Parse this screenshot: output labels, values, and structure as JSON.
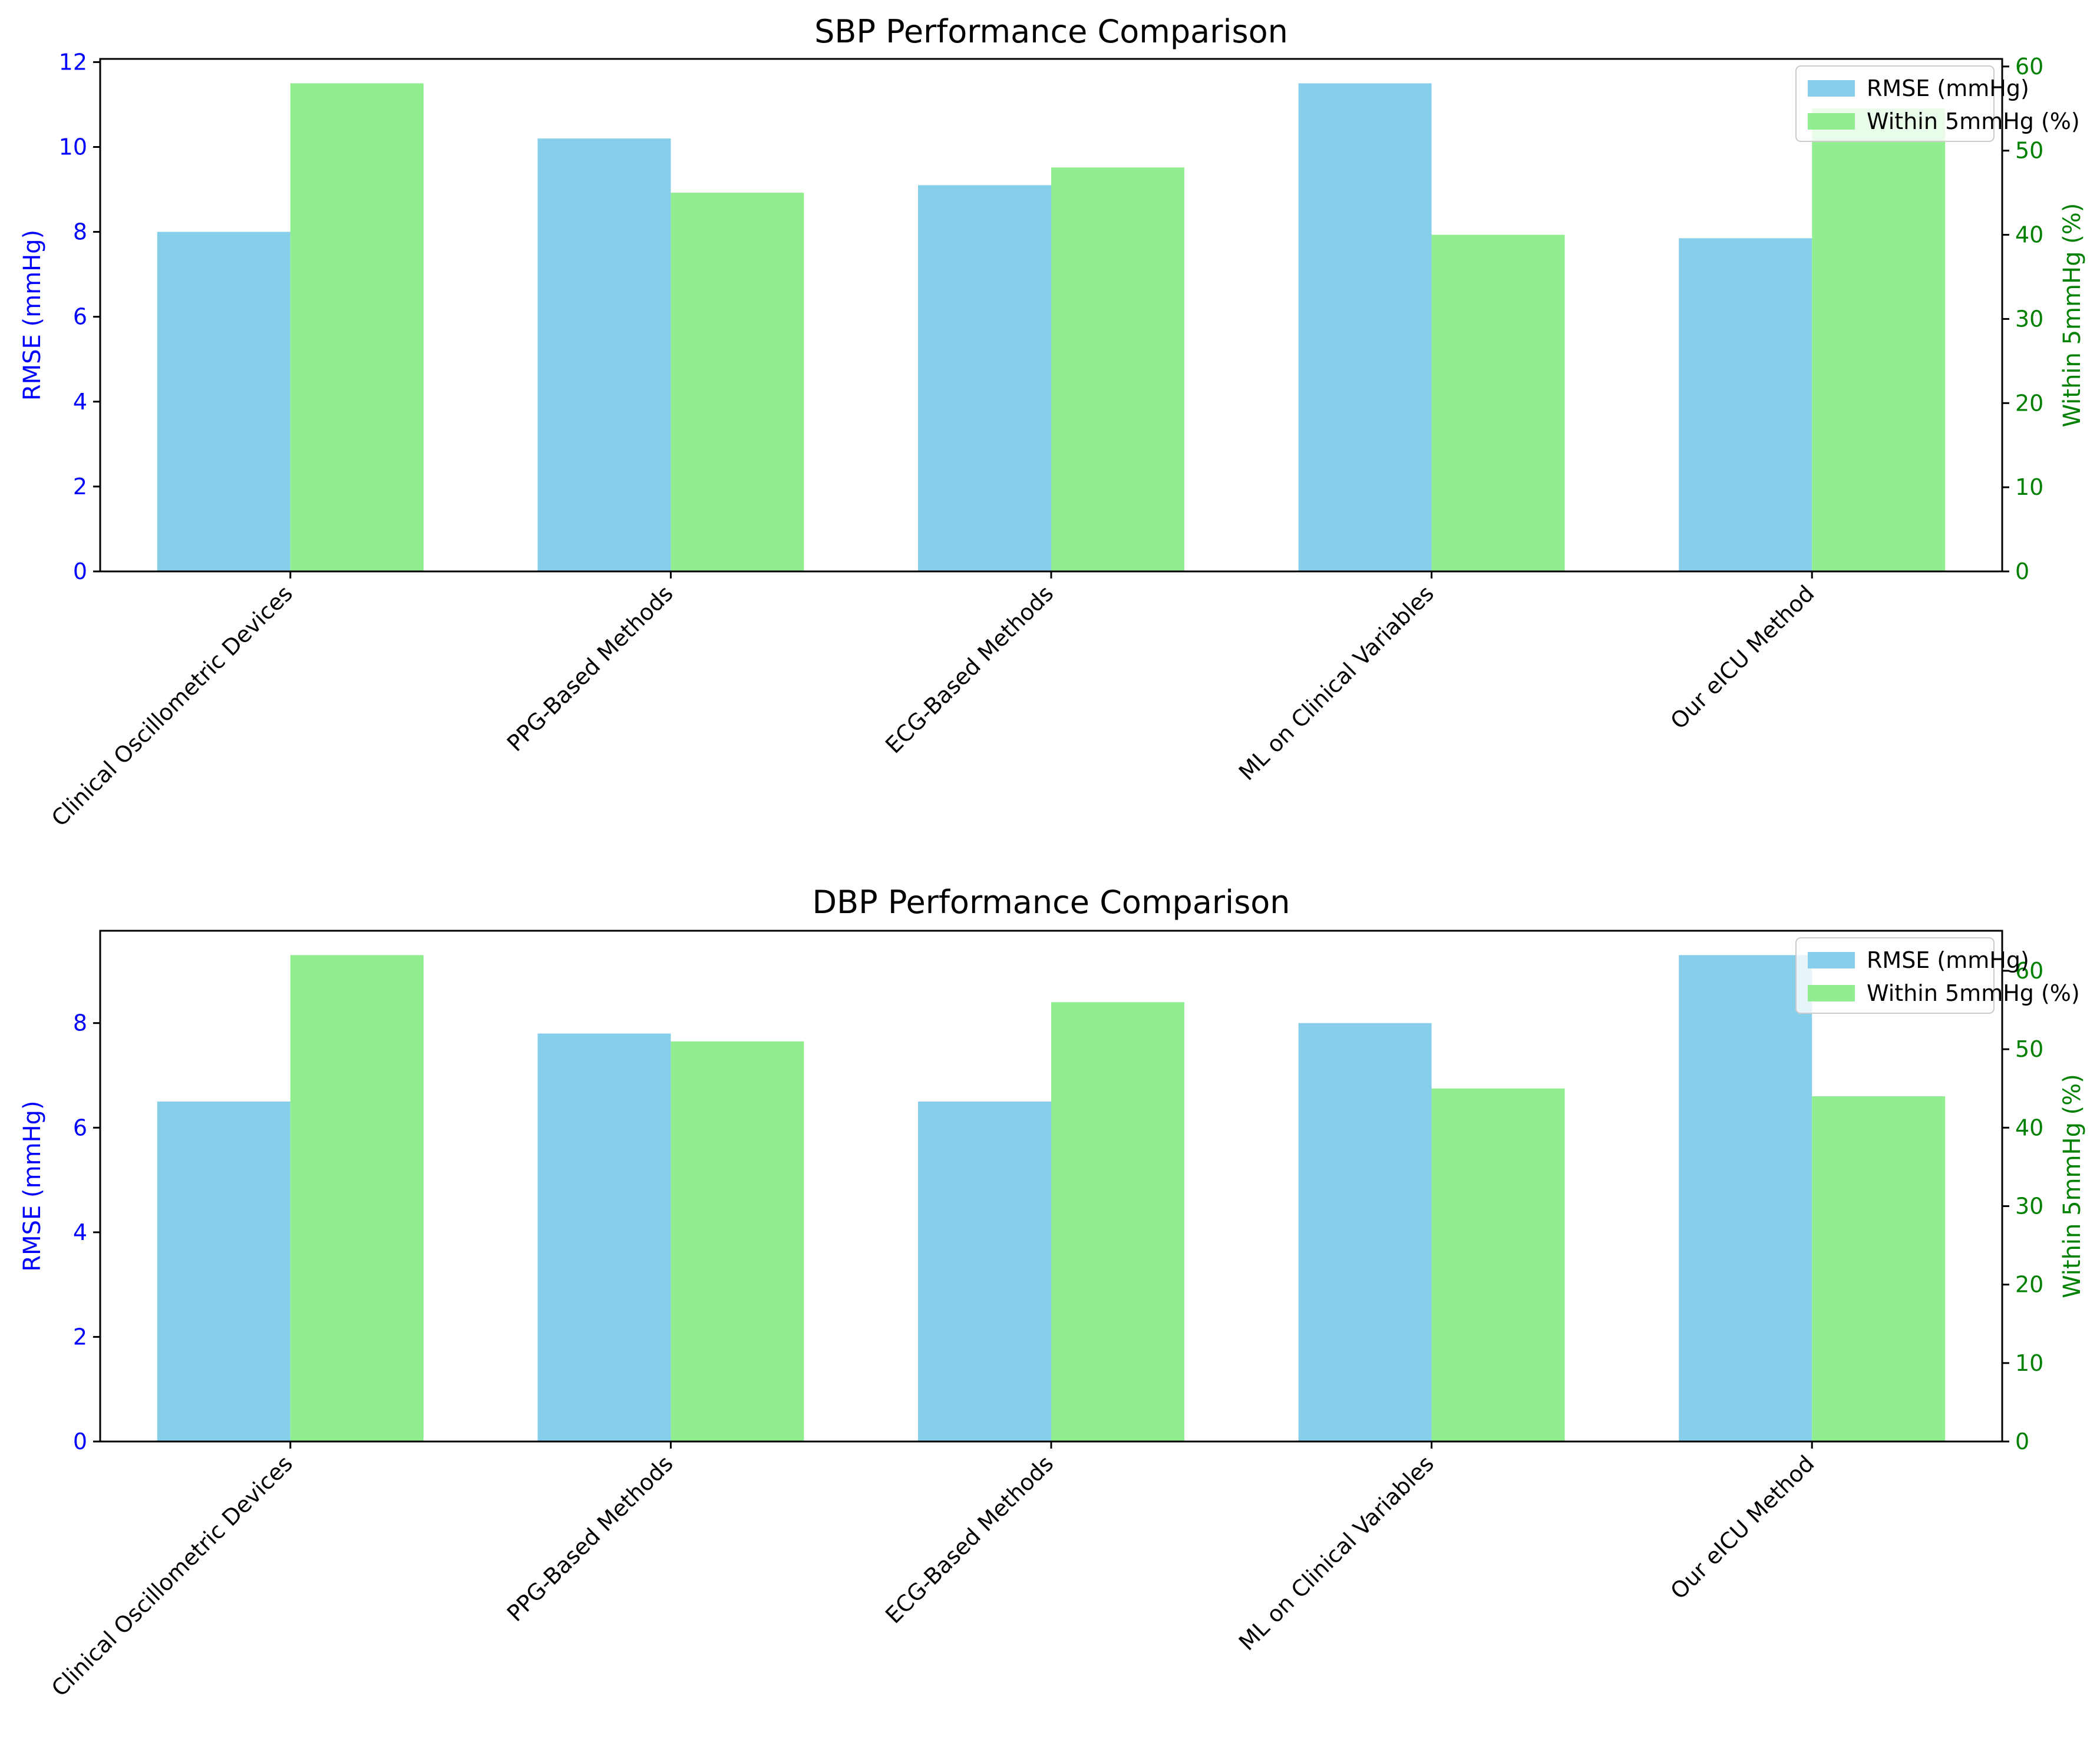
{
  "colors": {
    "rmse_bar": "#87ceeb",
    "within_bar": "#90ee90",
    "left_axis": "#0000ff",
    "right_axis": "#008000"
  },
  "chart_data": [
    {
      "type": "bar",
      "title": "SBP Performance Comparison",
      "categories": [
        "Clinical Oscillometric Devices",
        "PPG-Based Methods",
        "ECG-Based Methods",
        "ML on Clinical Variables",
        "Our eICU Method"
      ],
      "series": [
        {
          "name": "RMSE (mmHg)",
          "axis": "left",
          "values": [
            8.0,
            10.2,
            9.1,
            11.5,
            7.85
          ]
        },
        {
          "name": "Within 5mmHg (%)",
          "axis": "right",
          "values": [
            58,
            45,
            48,
            40,
            55
          ]
        }
      ],
      "ylabel_left": "RMSE (mmHg)",
      "ylabel_right": "Within 5mmHg (%)",
      "ylim_left": [
        0,
        12.075
      ],
      "ylim_right": [
        0,
        60.9
      ],
      "yticks_left": [
        0,
        2,
        4,
        6,
        8,
        10,
        12
      ],
      "yticks_right": [
        0,
        10,
        20,
        30,
        40,
        50,
        60
      ],
      "legend": "top-right",
      "grid": false
    },
    {
      "type": "bar",
      "title": "DBP Performance Comparison",
      "categories": [
        "Clinical Oscillometric Devices",
        "PPG-Based Methods",
        "ECG-Based Methods",
        "ML on Clinical Variables",
        "Our eICU Method"
      ],
      "series": [
        {
          "name": "RMSE (mmHg)",
          "axis": "left",
          "values": [
            6.5,
            7.8,
            6.5,
            8.0,
            9.3
          ]
        },
        {
          "name": "Within 5mmHg (%)",
          "axis": "right",
          "values": [
            62,
            51,
            56,
            45,
            44
          ]
        }
      ],
      "ylabel_left": "RMSE (mmHg)",
      "ylabel_right": "Within 5mmHg (%)",
      "ylim_left": [
        0,
        9.765
      ],
      "ylim_right": [
        0,
        65.1
      ],
      "yticks_left": [
        0,
        2,
        4,
        6,
        8
      ],
      "yticks_right": [
        0,
        10,
        20,
        30,
        40,
        50,
        60
      ],
      "legend": "top-right",
      "grid": false
    }
  ]
}
